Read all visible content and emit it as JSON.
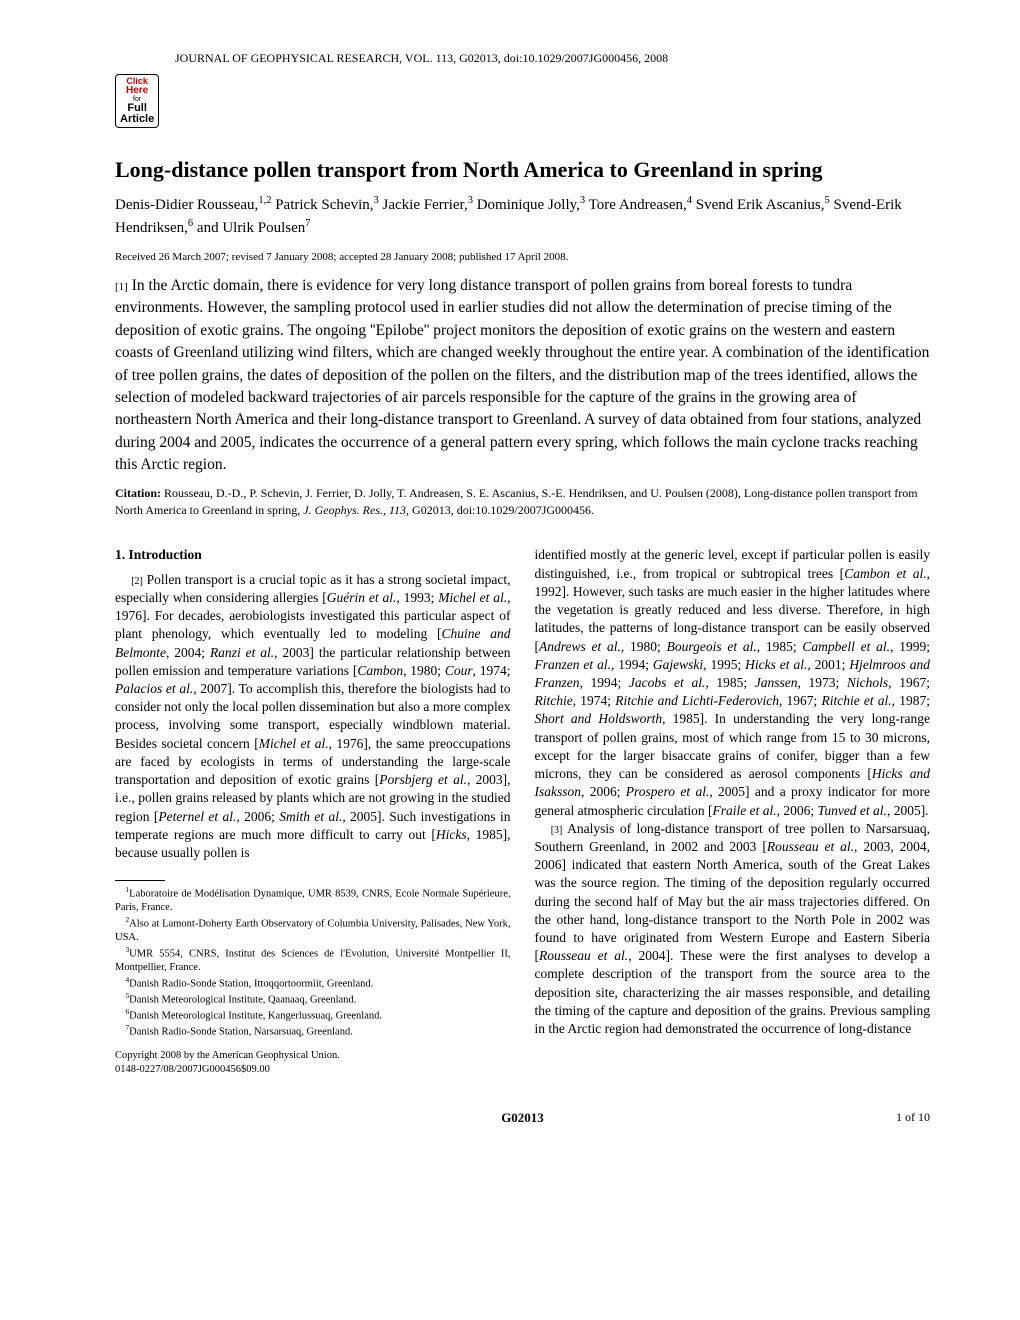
{
  "header": {
    "journal_line": "JOURNAL OF GEOPHYSICAL RESEARCH, VOL. 113, G02013, doi:10.1029/2007JG000456, 2008",
    "badge": {
      "click": "Click",
      "here": "Here",
      "for": "for",
      "full": "Full",
      "article": "Article"
    }
  },
  "title": "Long-distance pollen transport from North America to Greenland in spring",
  "authors_html": "Denis-Didier Rousseau,<sup>1,2</sup> Patrick Schevin,<sup>3</sup> Jackie Ferrier,<sup>3</sup> Dominique Jolly,<sup>3</sup> Tore Andreasen,<sup>4</sup> Svend Erik Ascanius,<sup>5</sup> Svend-Erik Hendriksen,<sup>6</sup> and Ulrik Poulsen<sup>7</sup>",
  "received": "Received 26 March 2007; revised 7 January 2008; accepted 28 January 2008; published 17 April 2008.",
  "abstract": {
    "num": "[1]",
    "text": " In the Arctic domain, there is evidence for very long distance transport of pollen grains from boreal forests to tundra environments. However, the sampling protocol used in earlier studies did not allow the determination of precise timing of the deposition of exotic grains. The ongoing ''Epilobe'' project monitors the deposition of exotic grains on the western and eastern coasts of Greenland utilizing wind filters, which are changed weekly throughout the entire year. A combination of the identification of tree pollen grains, the dates of deposition of the pollen on the filters, and the distribution map of the trees identified, allows the selection of modeled backward trajectories of air parcels responsible for the capture of the grains in the growing area of northeastern North America and their long-distance transport to Greenland. A survey of data obtained from four stations, analyzed during 2004 and 2005, indicates the occurrence of a general pattern every spring, which follows the main cyclone tracks reaching this Arctic region."
  },
  "citation": {
    "label": "Citation:",
    "text": " Rousseau, D.-D., P. Schevin, J. Ferrier, D. Jolly, T. Andreasen, S. E. Ascanius, S.-E. Hendriksen, and U. Poulsen (2008), Long-distance pollen transport from North America to Greenland in spring, <i>J. Geophys. Res.</i>, <i>113</i>, G02013, doi:10.1029/2007JG000456."
  },
  "left_col": {
    "section_head": "1.   Introduction",
    "p2_num": "[2]",
    "p2": " Pollen transport is a crucial topic as it has a strong societal impact, especially when considering allergies [<i>Guérin et al.</i>, 1993; <i>Michel et al.</i>, 1976]. For decades, aerobiologists investigated this particular aspect of plant phenology, which eventually led to modeling [<i>Chuine and Belmonte</i>, 2004; <i>Ranzi et al.</i>, 2003] the particular relationship between pollen emission and temperature variations [<i>Cambon</i>, 1980; <i>Cour</i>, 1974; <i>Palacios et al.</i>, 2007]. To accomplish this, therefore the biologists had to consider not only the local pollen dissemination but also a more complex process, involving some transport, especially windblown material. Besides societal concern [<i>Michel et al.</i>, 1976], the same preoccupations are faced by ecologists in terms of understanding the large-scale transportation and deposition of exotic grains [<i>Porsbjerg et al.</i>, 2003], i.e., pollen grains released by plants which are not growing in the studied region [<i>Peternel et al.</i>, 2006; <i>Smith et al.</i>, 2005]. Such investigations in temperate regions are much more difficult to carry out [<i>Hicks</i>, 1985], because usually pollen is"
  },
  "affiliations": [
    "<sup>1</sup>Laboratoire de Modélisation Dynamique, UMR 8539, CNRS, Ecole Normale Supérieure, Paris, France.",
    "<sup>2</sup>Also at Lamont-Doherty Earth Observatory of Columbia University, Palisades, New York, USA.",
    "<sup>3</sup>UMR 5554, CNRS, Institut des Sciences de l'Evolution, Université Montpellier II, Montpellier, France.",
    "<sup>4</sup>Danish Radio-Sonde Station, Ittoqqortoormiit, Greenland.",
    "<sup>5</sup>Danish Meteorological Institute, Qaanaaq, Greenland.",
    "<sup>6</sup>Danish Meteorological Institute, Kangerlussuaq, Greenland.",
    "<sup>7</sup>Danish Radio-Sonde Station, Narsarsuaq, Greenland."
  ],
  "copyright": {
    "line1": "Copyright 2008 by the American Geophysical Union.",
    "line2": "0148-0227/08/2007JG000456$09.00"
  },
  "right_col": {
    "p2_cont": "identified mostly at the generic level, except if particular pollen is easily distinguished, i.e., from tropical or subtropical trees [<i>Cambon et al.</i>, 1992]. However, such tasks are much easier in the higher latitudes where the vegetation is greatly reduced and less diverse. Therefore, in high latitudes, the patterns of long-distance transport can be easily observed [<i>Andrews et al.</i>, 1980; <i>Bourgeois et al.</i>, 1985; <i>Campbell et al.</i>, 1999; <i>Franzen et al.</i>, 1994; <i>Gajewski</i>, 1995; <i>Hicks et al.</i>, 2001; <i>Hjelmroos and Franzen</i>, 1994; <i>Jacobs et al.</i>, 1985; <i>Janssen</i>, 1973; <i>Nichols</i>, 1967; <i>Ritchie</i>, 1974; <i>Ritchie and Lichti-Federovich</i>, 1967; <i>Ritchie et al.</i>, 1987; <i>Short and Holdsworth</i>, 1985]. In understanding the very long-range transport of pollen grains, most of which range from 15 to 30 microns, except for the larger bisaccate grains of conifer, bigger than a few microns, they can be considered as aerosol components [<i>Hicks and Isaksson</i>, 2006; <i>Prospero et al.</i>, 2005] and a proxy indicator for more general atmospheric circulation [<i>Fraile et al.</i>, 2006; <i>Tunved et al.</i>, 2005].",
    "p3_num": "[3]",
    "p3": " Analysis of long-distance transport of tree pollen to Narsarsuaq, Southern Greenland, in 2002 and 2003 [<i>Rousseau et al.</i>, 2003, 2004, 2006] indicated that eastern North America, south of the Great Lakes was the source region. The timing of the deposition regularly occurred during the second half of May but the air mass trajectories differed. On the other hand, long-distance transport to the North Pole in 2002 was found to have originated from Western Europe and Eastern Siberia [<i>Rousseau et al.</i>, 2004]. These were the first analyses to develop a complete description of the transport from the source area to the deposition site, characterizing the air masses responsible, and detailing the timing of the capture and deposition of the grains. Previous sampling in the Arctic region had demonstrated the occurrence of long-distance"
  },
  "footer": {
    "code": "G02013",
    "page": "1 of 10"
  }
}
